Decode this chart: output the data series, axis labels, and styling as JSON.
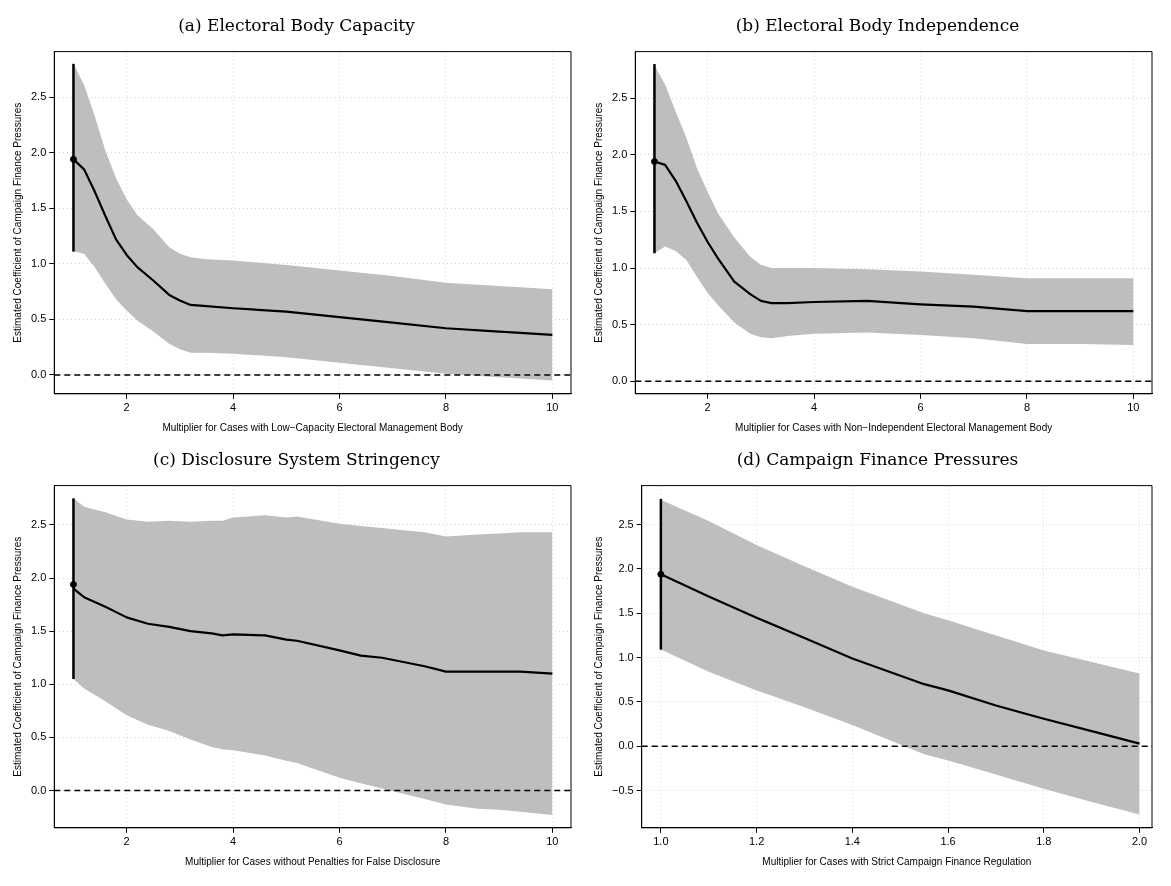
{
  "chart_data": [
    {
      "type": "line",
      "title": "(a) Electoral Body Capacity",
      "xlabel": "Multiplier for Cases with Low−Capacity Electoral Management Body",
      "ylabel": "Estimated Coefficient of Campaign Finance Pressures",
      "xlim": [
        0.64,
        10.35
      ],
      "xticks": [
        2,
        4,
        6,
        8,
        10
      ],
      "ylim": [
        -0.17,
        2.91
      ],
      "yticks": [
        {
          "value": 0,
          "label": "0.0"
        },
        {
          "value": 0.5,
          "label": "0.5"
        },
        {
          "value": 1,
          "label": "1.0"
        },
        {
          "value": 1.5,
          "label": "1.5"
        },
        {
          "value": 2,
          "label": "2.0"
        },
        {
          "value": 2.5,
          "label": "2.5"
        }
      ],
      "grid": true,
      "legend": false,
      "ref_lines": [
        {
          "axis": "y",
          "value": 0,
          "color": "#000000",
          "line_style": "dashed"
        }
      ],
      "series": [
        {
          "type": "line",
          "color": "#000000",
          "line_style": "solid",
          "marker": "none",
          "x": [
            1,
            1.2,
            1.4,
            1.6,
            1.8,
            2,
            2.2,
            2.5,
            2.8,
            3,
            3.2,
            3.5,
            4,
            5,
            6,
            7,
            8,
            9,
            10
          ],
          "values": [
            1.94,
            1.85,
            1.65,
            1.43,
            1.22,
            1.08,
            0.97,
            0.85,
            0.72,
            0.67,
            0.63,
            0.62,
            0.6,
            0.57,
            0.52,
            0.47,
            0.42,
            0.39,
            0.36
          ],
          "lower": [
            1.11,
            1.09,
            0.97,
            0.82,
            0.68,
            0.58,
            0.49,
            0.39,
            0.28,
            0.23,
            0.2,
            0.2,
            0.19,
            0.16,
            0.11,
            0.06,
            0.01,
            -0.02,
            -0.05
          ],
          "upper": [
            2.8,
            2.61,
            2.33,
            2.02,
            1.77,
            1.58,
            1.44,
            1.31,
            1.15,
            1.09,
            1.06,
            1.04,
            1.03,
            0.99,
            0.94,
            0.89,
            0.83,
            0.8,
            0.77
          ]
        },
        {
          "type": "scatter",
          "color": "#000000",
          "marker": "circle",
          "x": [
            1
          ],
          "values": [
            1.94
          ],
          "errors": [
            [
              1.11,
              2.8
            ]
          ]
        }
      ]
    },
    {
      "type": "line",
      "title": "(b) Electoral Body Independence",
      "xlabel": "Multiplier for Cases with Non−Independent Electoral Management Body",
      "ylabel": "Estimated Coefficient of Campaign Finance Pressures",
      "xlim": [
        0.64,
        10.35
      ],
      "xticks": [
        2,
        4,
        6,
        8,
        10
      ],
      "ylim": [
        -0.11,
        2.91
      ],
      "yticks": [
        {
          "value": 0,
          "label": "0.0"
        },
        {
          "value": 0.5,
          "label": "0.5"
        },
        {
          "value": 1,
          "label": "1.0"
        },
        {
          "value": 1.5,
          "label": "1.5"
        },
        {
          "value": 2,
          "label": "2.0"
        },
        {
          "value": 2.5,
          "label": "2.5"
        }
      ],
      "grid": true,
      "legend": false,
      "ref_lines": [
        {
          "axis": "y",
          "value": 0,
          "color": "#000000",
          "line_style": "dashed"
        }
      ],
      "series": [
        {
          "type": "line",
          "color": "#000000",
          "line_style": "solid",
          "marker": "none",
          "x": [
            1,
            1.2,
            1.4,
            1.6,
            1.8,
            2,
            2.2,
            2.5,
            2.8,
            3,
            3.2,
            3.5,
            4,
            5,
            6,
            7,
            8,
            9,
            10
          ],
          "values": [
            1.94,
            1.91,
            1.77,
            1.59,
            1.4,
            1.23,
            1.08,
            0.88,
            0.77,
            0.71,
            0.69,
            0.69,
            0.7,
            0.71,
            0.68,
            0.66,
            0.62,
            0.62,
            0.62
          ],
          "lower": [
            1.13,
            1.19,
            1.15,
            1.07,
            0.92,
            0.78,
            0.67,
            0.52,
            0.42,
            0.39,
            0.38,
            0.4,
            0.42,
            0.43,
            0.41,
            0.38,
            0.33,
            0.33,
            0.32
          ],
          "upper": [
            2.79,
            2.62,
            2.38,
            2.15,
            1.88,
            1.67,
            1.48,
            1.27,
            1.1,
            1.03,
            1,
            1,
            1,
            0.99,
            0.97,
            0.94,
            0.91,
            0.91,
            0.91
          ]
        },
        {
          "type": "scatter",
          "color": "#000000",
          "marker": "circle",
          "x": [
            1
          ],
          "values": [
            1.94
          ],
          "errors": [
            [
              1.13,
              2.8
            ]
          ]
        }
      ]
    },
    {
      "type": "line",
      "title": "(c) Disclosure System Stringency",
      "xlabel": "Multiplier for Cases without Penalties for False Disclosure",
      "ylabel": "Estimated Coefficient of Campaign Finance Pressures",
      "xlim": [
        0.64,
        10.35
      ],
      "xticks": [
        2,
        4,
        6,
        8,
        10
      ],
      "ylim": [
        -0.35,
        2.87
      ],
      "yticks": [
        {
          "value": 0,
          "label": "0.0"
        },
        {
          "value": 0.5,
          "label": "0.5"
        },
        {
          "value": 1,
          "label": "1.0"
        },
        {
          "value": 1.5,
          "label": "1.5"
        },
        {
          "value": 2,
          "label": "2.0"
        },
        {
          "value": 2.5,
          "label": "2.5"
        }
      ],
      "grid": true,
      "legend": false,
      "ref_lines": [
        {
          "axis": "y",
          "value": 0,
          "color": "#000000",
          "line_style": "dashed"
        }
      ],
      "series": [
        {
          "type": "line",
          "color": "#000000",
          "line_style": "solid",
          "marker": "none",
          "x": [
            1,
            1.2,
            1.6,
            2,
            2.4,
            2.8,
            3.2,
            3.6,
            3.8,
            4,
            4.6,
            5,
            5.2,
            6,
            6.4,
            6.8,
            7.2,
            7.6,
            8,
            8.6,
            9,
            9.4,
            10
          ],
          "values": [
            1.9,
            1.82,
            1.73,
            1.63,
            1.57,
            1.54,
            1.5,
            1.48,
            1.46,
            1.47,
            1.46,
            1.42,
            1.41,
            1.32,
            1.27,
            1.25,
            1.21,
            1.17,
            1.12,
            1.12,
            1.12,
            1.12,
            1.1
          ],
          "lower": [
            1.05,
            0.96,
            0.84,
            0.71,
            0.62,
            0.56,
            0.48,
            0.41,
            0.39,
            0.38,
            0.33,
            0.28,
            0.26,
            0.12,
            0.07,
            0.02,
            -0.03,
            -0.08,
            -0.13,
            -0.17,
            -0.18,
            -0.2,
            -0.23
          ],
          "upper": [
            2.75,
            2.67,
            2.62,
            2.55,
            2.53,
            2.54,
            2.53,
            2.54,
            2.54,
            2.57,
            2.59,
            2.57,
            2.58,
            2.51,
            2.49,
            2.47,
            2.45,
            2.43,
            2.39,
            2.41,
            2.42,
            2.43,
            2.43
          ]
        },
        {
          "type": "scatter",
          "color": "#000000",
          "marker": "circle",
          "x": [
            1
          ],
          "values": [
            1.94
          ],
          "errors": [
            [
              1.05,
              2.75
            ]
          ]
        }
      ]
    },
    {
      "type": "line",
      "title": "(d) Campaign Finance Pressures",
      "xlabel": "Multiplier for Cases with Strict Campaign Finance Regulation",
      "ylabel": "Estimated Coefficient of Campaign Finance Pressures",
      "xlim": [
        0.96,
        2.026
      ],
      "xticks": [
        {
          "value": 1,
          "label": "1.0"
        },
        1.2,
        1.4,
        1.6,
        1.8,
        {
          "value": 2,
          "label": "2.0"
        }
      ],
      "ylim": [
        -0.92,
        2.94
      ],
      "yticks": [
        {
          "value": -0.5,
          "label": "−0.5"
        },
        {
          "value": 0,
          "label": "0.0"
        },
        {
          "value": 0.5,
          "label": "0.5"
        },
        {
          "value": 1,
          "label": "1.0"
        },
        {
          "value": 1.5,
          "label": "1.5"
        },
        {
          "value": 2,
          "label": "2.0"
        },
        {
          "value": 2.5,
          "label": "2.5"
        }
      ],
      "grid": true,
      "legend": false,
      "ref_lines": [
        {
          "axis": "y",
          "value": 0,
          "color": "#000000",
          "line_style": "dashed"
        }
      ],
      "series": [
        {
          "type": "line",
          "color": "#000000",
          "line_style": "solid",
          "marker": "none",
          "x": [
            1,
            1.1,
            1.2,
            1.3,
            1.4,
            1.55,
            1.6,
            1.7,
            1.8,
            1.9,
            2
          ],
          "values": [
            1.94,
            1.69,
            1.45,
            1.22,
            0.99,
            0.7,
            0.63,
            0.46,
            0.31,
            0.17,
            0.03
          ],
          "lower": [
            1.09,
            0.84,
            0.63,
            0.44,
            0.24,
            -0.09,
            -0.16,
            -0.32,
            -0.48,
            -0.63,
            -0.77
          ],
          "upper": [
            2.78,
            2.54,
            2.27,
            2.03,
            1.8,
            1.5,
            1.42,
            1.25,
            1.08,
            0.95,
            0.82
          ]
        },
        {
          "type": "scatter",
          "color": "#000000",
          "marker": "circle",
          "x": [
            1
          ],
          "values": [
            1.94
          ],
          "errors": [
            [
              1.09,
              2.79
            ]
          ]
        }
      ]
    }
  ]
}
